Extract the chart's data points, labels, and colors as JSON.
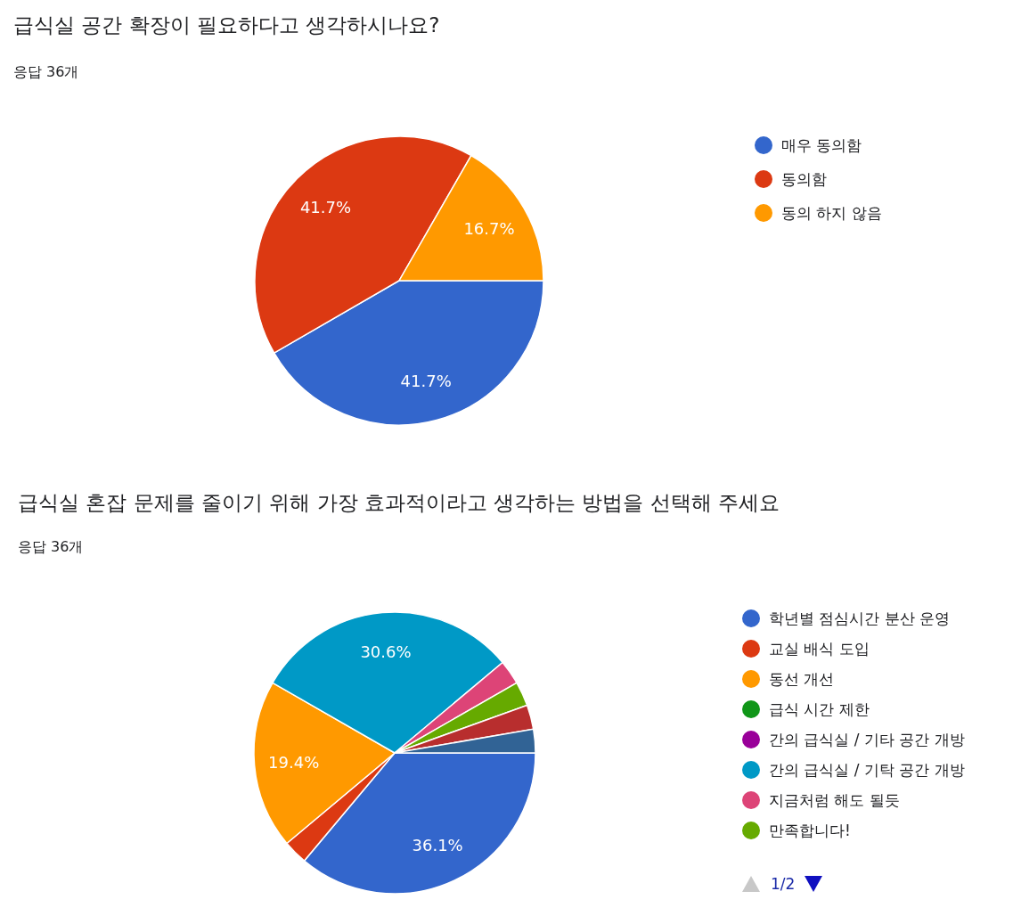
{
  "chart_data": [
    {
      "type": "pie",
      "title": "급식실 공간 확장이 필요하다고 생각하시나요?",
      "subtitle": "응답 36개",
      "categories": [
        "매우 동의함",
        "동의함",
        "동의 하지 않음"
      ],
      "values": [
        41.7,
        41.7,
        16.7
      ],
      "colors": [
        "#3366cc",
        "#dc3912",
        "#ff9900"
      ],
      "value_labels": [
        "41.7%",
        "41.7%",
        "16.7%"
      ],
      "legend": "right"
    },
    {
      "type": "pie",
      "title": "급식실 혼잡 문제를 줄이기 위해 가장 효과적이라고 생각하는 방법을 선택해 주세요",
      "subtitle": "응답 36개",
      "categories": [
        "학년별 점심시간 분산 운영",
        "교실 배식 도입",
        "동선 개선",
        "급식 시간 제한",
        "간의 급식실 / 기타 공간 개방",
        "간의 급식실 / 기탁 공간 개방",
        "지금처럼 해도 될듯",
        "만족합니다!",
        null,
        null
      ],
      "values": [
        36.1,
        2.8,
        19.4,
        0,
        0,
        30.6,
        2.8,
        2.8,
        2.8,
        2.7
      ],
      "colors": [
        "#3366cc",
        "#dc3912",
        "#ff9900",
        "#109618",
        "#990099",
        "#0099c6",
        "#dd4477",
        "#66aa00",
        "#b82e2e",
        "#316395"
      ],
      "value_labels": [
        "36.1%",
        null,
        "19.4%",
        null,
        null,
        "30.6%",
        null,
        null,
        null,
        null
      ],
      "legend": "right",
      "annotations": [
        "1/2"
      ]
    }
  ]
}
